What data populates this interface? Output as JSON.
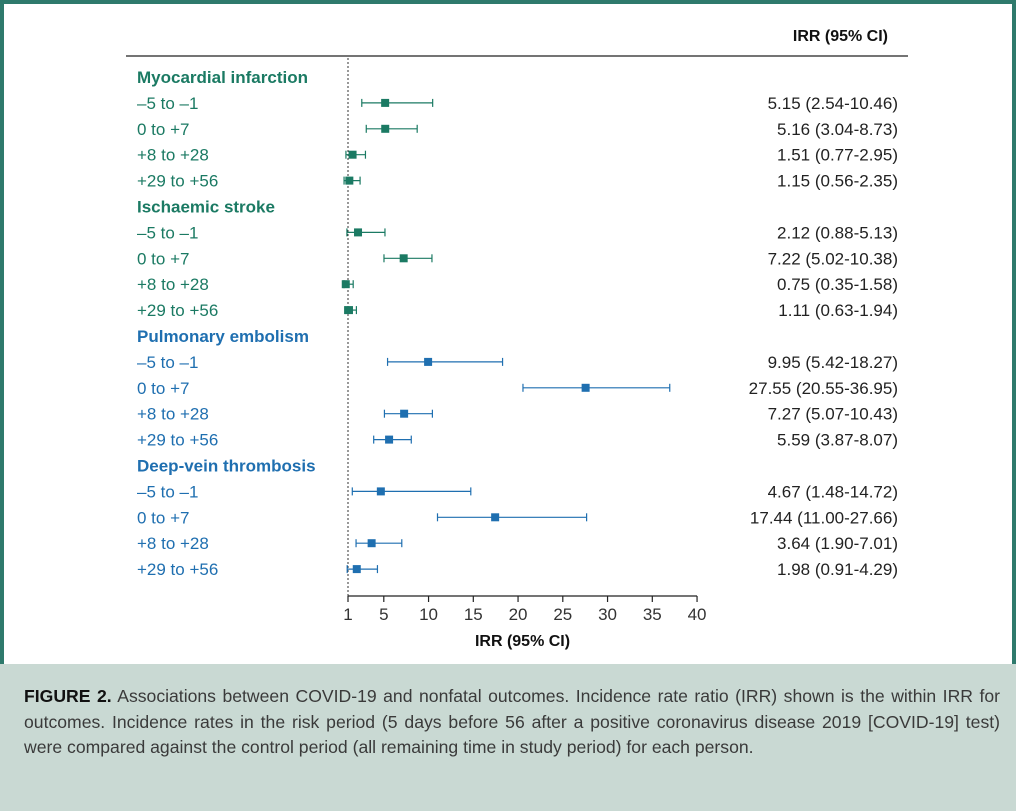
{
  "colors": {
    "frame": "#2e7a6c",
    "green": "#1b7a63",
    "blue": "#1f6fb0",
    "caption_bg": "#c9d9d3",
    "text": "#3a3a3a"
  },
  "column_header": "IRR (95% CI)",
  "caption": {
    "label": "FIGURE 2.",
    "text": "Associations between COVID-19 and nonfatal outcomes. Incidence rate ratio (IRR) shown is the within IRR for outcomes. Incidence rates in the risk period (5 days before 56 after a positive coronavirus disease 2019 [COVID-19] test) were compared against the control period (all remaining time in study period) for each person."
  },
  "chart_data": {
    "type": "forest",
    "xlabel": "IRR (95% CI)",
    "xlim": [
      1,
      40
    ],
    "xticks": [
      1,
      5,
      10,
      15,
      20,
      25,
      30,
      35,
      40
    ],
    "reference_line": 1,
    "groups": [
      {
        "name": "Myocardial infarction",
        "color": "green",
        "rows": [
          {
            "label": "–5 to –1",
            "est": 5.15,
            "lo": 2.54,
            "hi": 10.46,
            "text": "5.15 (2.54-10.46)"
          },
          {
            "label": "0 to +7",
            "est": 5.16,
            "lo": 3.04,
            "hi": 8.73,
            "text": "5.16 (3.04-8.73)"
          },
          {
            "label": "+8 to +28",
            "est": 1.51,
            "lo": 0.77,
            "hi": 2.95,
            "text": "1.51 (0.77-2.95)"
          },
          {
            "label": "+29 to +56",
            "est": 1.15,
            "lo": 0.56,
            "hi": 2.35,
            "text": "1.15 (0.56-2.35)"
          }
        ]
      },
      {
        "name": "Ischaemic stroke",
        "color": "green",
        "rows": [
          {
            "label": "–5 to –1",
            "est": 2.12,
            "lo": 0.88,
            "hi": 5.13,
            "text": "2.12 (0.88-5.13)"
          },
          {
            "label": "0 to +7",
            "est": 7.22,
            "lo": 5.02,
            "hi": 10.38,
            "text": "7.22 (5.02-10.38)"
          },
          {
            "label": "+8 to +28",
            "est": 0.75,
            "lo": 0.35,
            "hi": 1.58,
            "text": "0.75 (0.35-1.58)"
          },
          {
            "label": "+29 to +56",
            "est": 1.11,
            "lo": 0.63,
            "hi": 1.94,
            "text": "1.11 (0.63-1.94)"
          }
        ]
      },
      {
        "name": "Pulmonary embolism",
        "color": "blue",
        "rows": [
          {
            "label": "–5 to –1",
            "est": 9.95,
            "lo": 5.42,
            "hi": 18.27,
            "text": "9.95 (5.42-18.27)"
          },
          {
            "label": "0 to +7",
            "est": 27.55,
            "lo": 20.55,
            "hi": 36.95,
            "text": "27.55 (20.55-36.95)"
          },
          {
            "label": "+8 to +28",
            "est": 7.27,
            "lo": 5.07,
            "hi": 10.43,
            "text": "7.27 (5.07-10.43)"
          },
          {
            "label": "+29 to +56",
            "est": 5.59,
            "lo": 3.87,
            "hi": 8.07,
            "text": "5.59 (3.87-8.07)"
          }
        ]
      },
      {
        "name": "Deep-vein thrombosis",
        "color": "blue",
        "rows": [
          {
            "label": "–5 to –1",
            "est": 4.67,
            "lo": 1.48,
            "hi": 14.72,
            "text": "4.67 (1.48-14.72)"
          },
          {
            "label": "0 to +7",
            "est": 17.44,
            "lo": 11.0,
            "hi": 27.66,
            "text": "17.44 (11.00-27.66)"
          },
          {
            "label": "+8 to +28",
            "est": 3.64,
            "lo": 1.9,
            "hi": 7.01,
            "text": "3.64 (1.90-7.01)"
          },
          {
            "label": "+29 to +56",
            "est": 1.98,
            "lo": 0.91,
            "hi": 4.29,
            "text": "1.98 (0.91-4.29)"
          }
        ]
      }
    ]
  }
}
